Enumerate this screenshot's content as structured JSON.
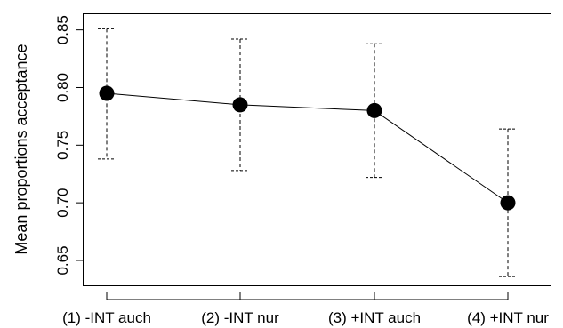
{
  "chart_data": {
    "type": "line",
    "title": "",
    "xlabel": "",
    "ylabel": "Mean proportions acceptance",
    "categories": [
      "(1) -INT auch",
      "(2) -INT nur",
      "(3) +INT auch",
      "(4) +INT nur"
    ],
    "series": [
      {
        "values": [
          0.795,
          0.785,
          0.78,
          0.7
        ],
        "error_lower": [
          0.738,
          0.728,
          0.722,
          0.636
        ],
        "error_upper": [
          0.851,
          0.842,
          0.838,
          0.764
        ]
      }
    ],
    "yticks": [
      "0.65",
      "0.70",
      "0.75",
      "0.80",
      "0.85"
    ],
    "ylim": [
      0.628,
      0.864
    ],
    "grid": false,
    "legend": "none",
    "colors": {
      "line": "#000000",
      "marker": "#000000",
      "errorbar": "#000000",
      "frame": "#000000"
    }
  }
}
